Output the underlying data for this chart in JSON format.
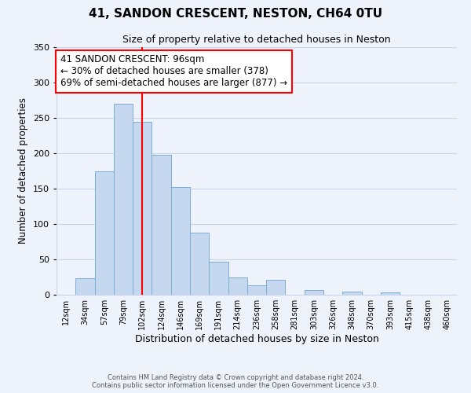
{
  "title": "41, SANDON CRESCENT, NESTON, CH64 0TU",
  "subtitle": "Size of property relative to detached houses in Neston",
  "xlabel": "Distribution of detached houses by size in Neston",
  "ylabel": "Number of detached properties",
  "bar_labels": [
    "12sqm",
    "34sqm",
    "57sqm",
    "79sqm",
    "102sqm",
    "124sqm",
    "146sqm",
    "169sqm",
    "191sqm",
    "214sqm",
    "236sqm",
    "258sqm",
    "281sqm",
    "303sqm",
    "326sqm",
    "348sqm",
    "370sqm",
    "393sqm",
    "415sqm",
    "438sqm",
    "460sqm"
  ],
  "bar_values": [
    0,
    23,
    175,
    270,
    245,
    198,
    152,
    88,
    47,
    25,
    13,
    21,
    0,
    7,
    0,
    5,
    0,
    3,
    0,
    0,
    0
  ],
  "bar_color": "#c5d8f0",
  "bar_edge_color": "#7bafd4",
  "vline_x_index": 4,
  "vline_color": "red",
  "ylim": [
    0,
    350
  ],
  "yticks": [
    0,
    50,
    100,
    150,
    200,
    250,
    300,
    350
  ],
  "annotation_text": "41 SANDON CRESCENT: 96sqm\n← 30% of detached houses are smaller (378)\n69% of semi-detached houses are larger (877) →",
  "annotation_box_color": "white",
  "annotation_box_edge": "red",
  "footer_line1": "Contains HM Land Registry data © Crown copyright and database right 2024.",
  "footer_line2": "Contains public sector information licensed under the Open Government Licence v3.0.",
  "background_color": "#eef2fa",
  "plot_bg_color": "#eef2fa",
  "grid_color": "#c8d4e8"
}
